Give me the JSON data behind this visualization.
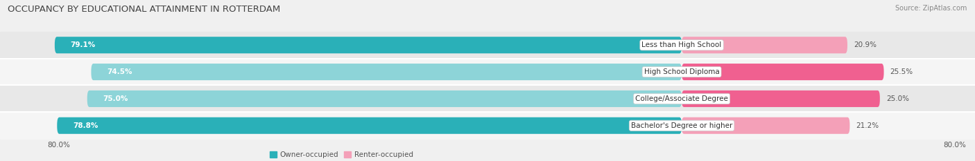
{
  "title": "OCCUPANCY BY EDUCATIONAL ATTAINMENT IN ROTTERDAM",
  "source": "Source: ZipAtlas.com",
  "categories": [
    "Less than High School",
    "High School Diploma",
    "College/Associate Degree",
    "Bachelor's Degree or higher"
  ],
  "owner_pct": [
    79.1,
    74.5,
    75.0,
    78.8
  ],
  "renter_pct": [
    20.9,
    25.5,
    25.0,
    21.2
  ],
  "owner_colors": [
    "#2ab0b8",
    "#8dd4d8",
    "#8dd4d8",
    "#2ab0b8"
  ],
  "renter_colors": [
    "#f4a0b8",
    "#f06090",
    "#f06090",
    "#f4a0b8"
  ],
  "bar_height": 0.62,
  "background_color": "#f0f0f0",
  "row_bg_colors": [
    "#e8e8e8",
    "#f5f5f5",
    "#e8e8e8",
    "#f5f5f5"
  ],
  "axis_label_left": "80.0%",
  "axis_label_right": "80.0%",
  "title_fontsize": 9.5,
  "bar_fontsize": 7.5,
  "label_fontsize": 7.5,
  "source_fontsize": 7,
  "legend_fontsize": 7.5
}
